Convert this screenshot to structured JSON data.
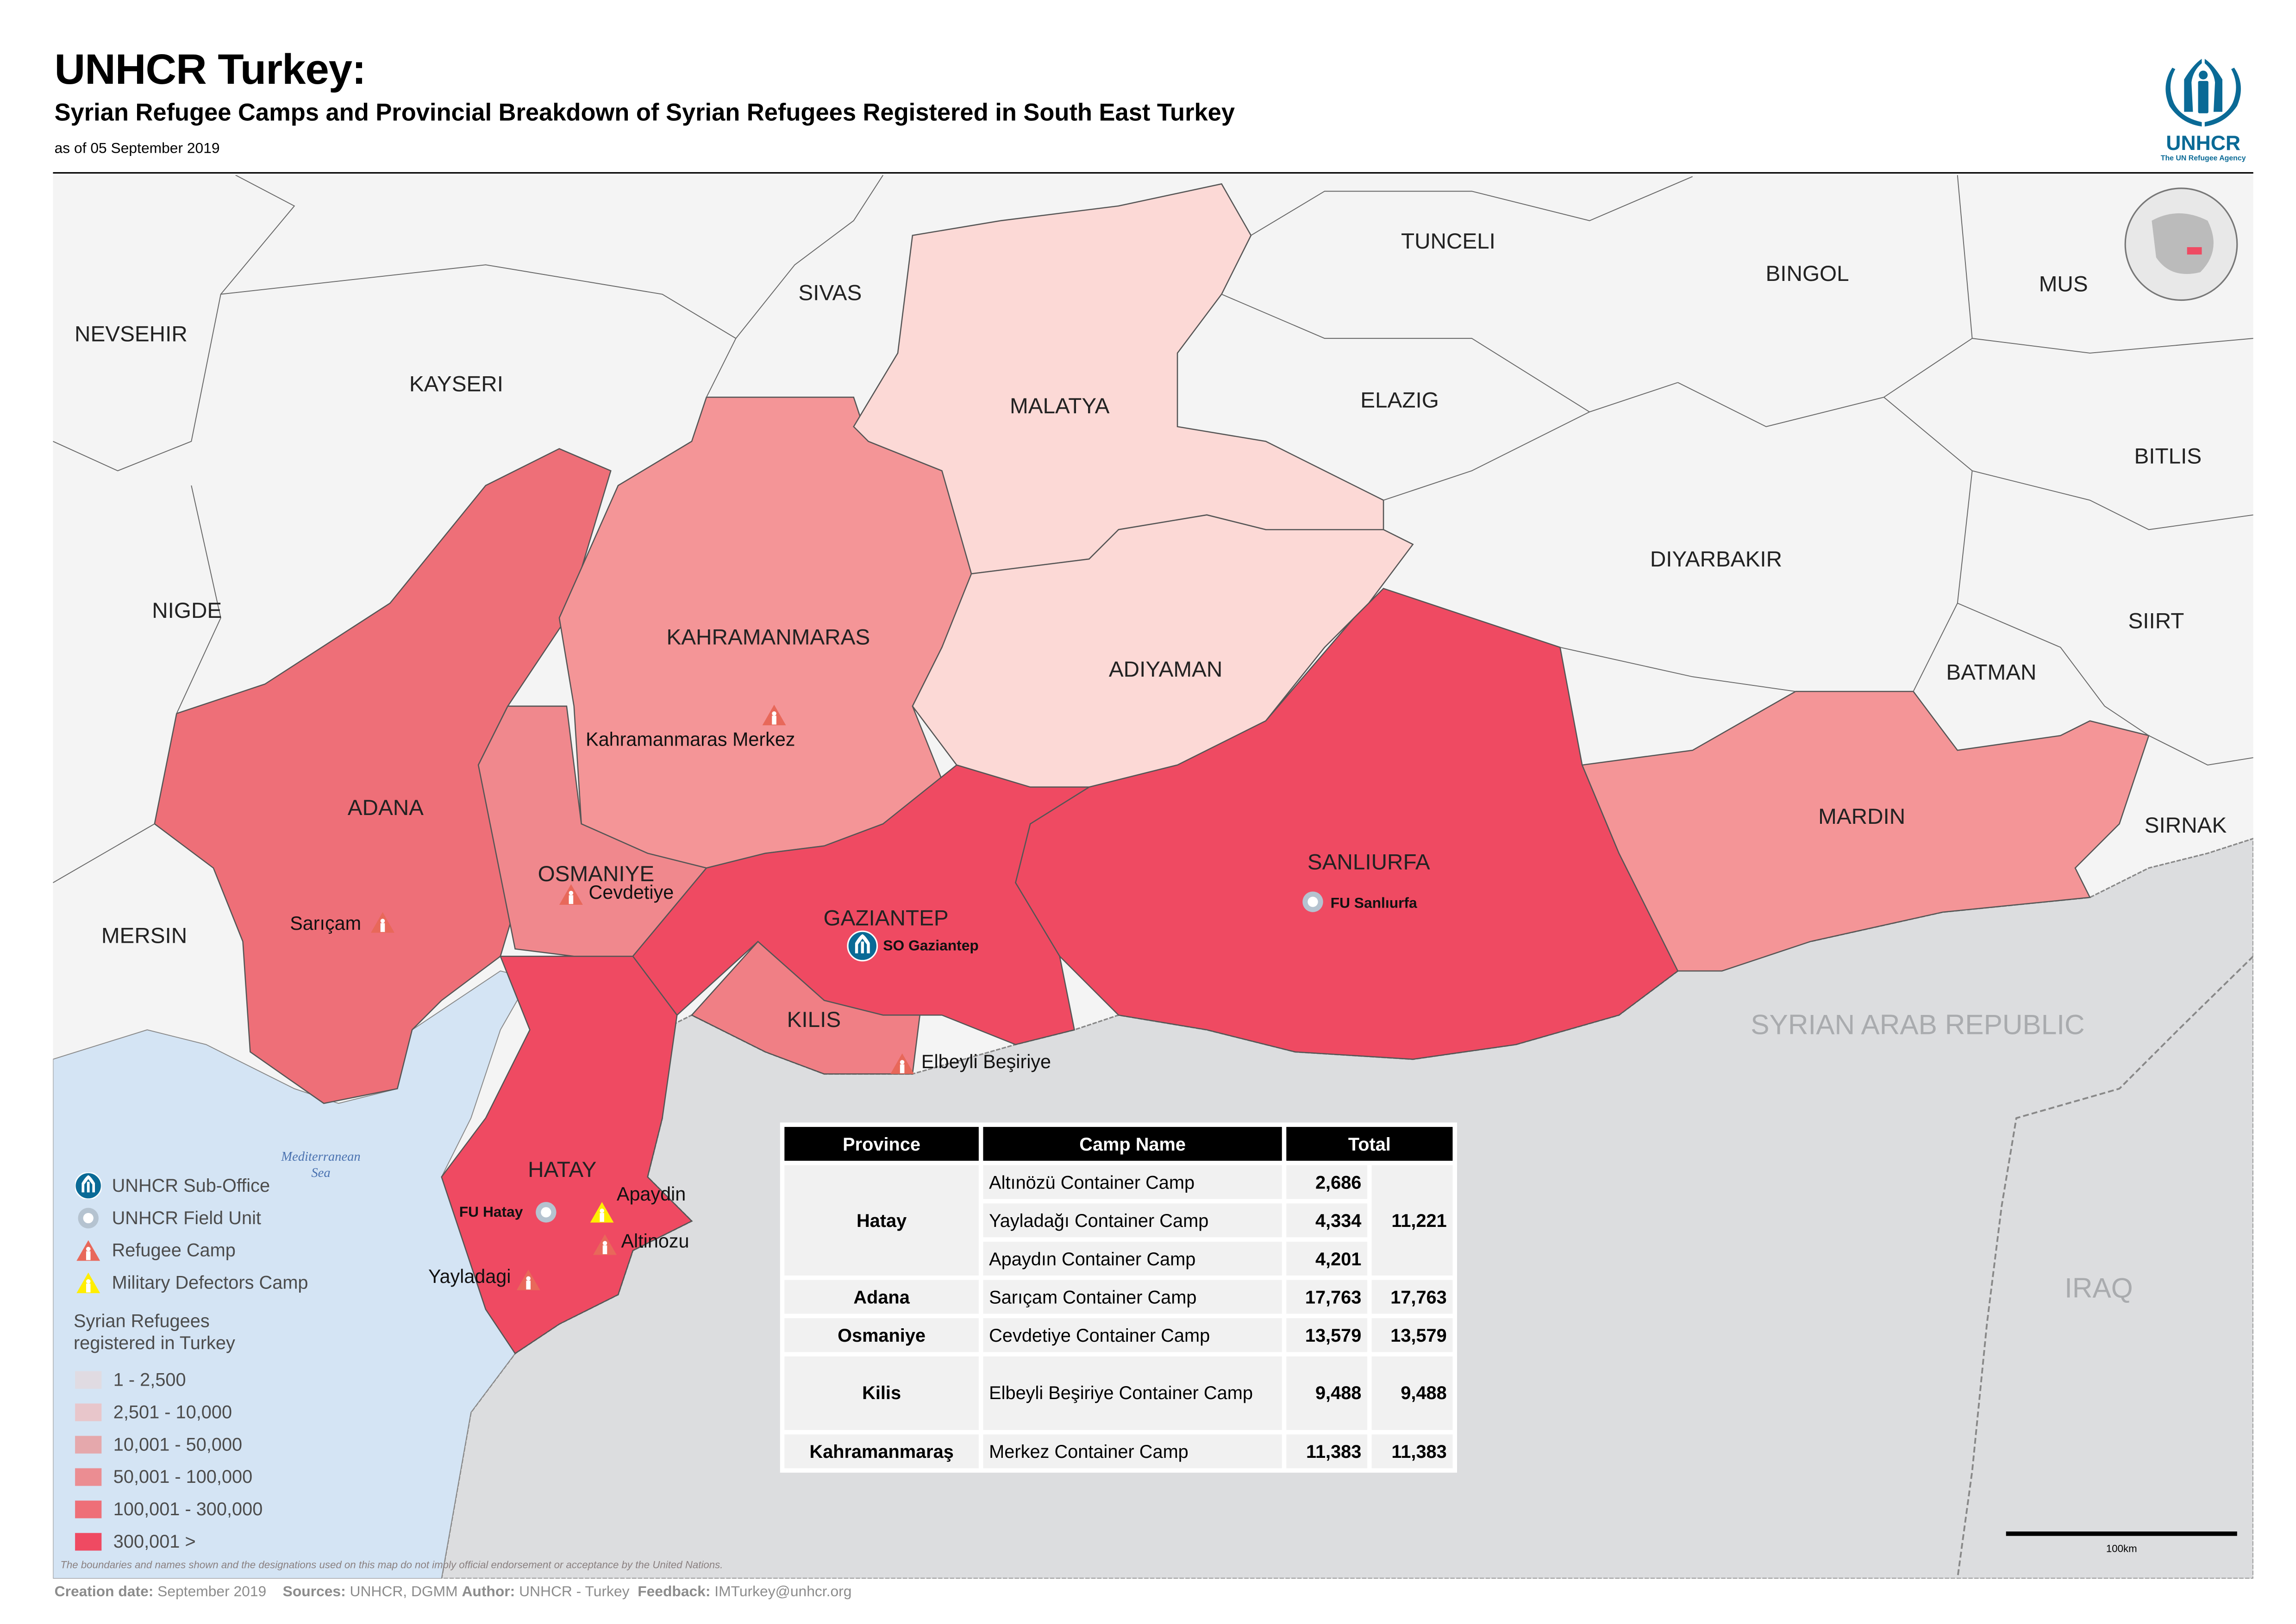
{
  "header": {
    "title": "UNHCR Turkey:",
    "subtitle": "Syrian Refugee Camps and Provincial Breakdown of Syrian Refugees Registered in South East Turkey",
    "as_of": "as of 05 September 2019"
  },
  "logo": {
    "name": "UNHCR",
    "tagline": "The UN Refugee Agency",
    "color": "#0a6a96"
  },
  "map": {
    "provinces": {
      "nevsehir": "NEVSEHIR",
      "kayseri": "KAYSERI",
      "sivas": "SIVAS",
      "tunceli": "TUNCELI",
      "bingol": "BINGOL",
      "mus": "MUS",
      "malatya": "MALATYA",
      "elazig": "ELAZIG",
      "bitlis": "BITLIS",
      "nigde": "NIGDE",
      "diyarbakir": "DIYARBAKIR",
      "siirt": "SIIRT",
      "kahramanmaras": "KAHRAMANMARAS",
      "adiyaman": "ADIYAMAN",
      "batman": "BATMAN",
      "adana": "ADANA",
      "mardin": "MARDIN",
      "sirnak": "SIRNAK",
      "sanliurfa": "SANLIURFA",
      "osmaniye": "OSMANIYE",
      "mersin": "MERSIN",
      "gaziantep": "GAZIANTEP",
      "kilis": "KILIS",
      "hatay": "HATAY"
    },
    "countries": {
      "syria": "SYRIAN ARAB REPUBLIC",
      "iraq": "IRAQ"
    },
    "sea": {
      "line1": "Mediterranean",
      "line2": "Sea"
    },
    "camps": {
      "kahramanmaras": "Kahramanmaras Merkez",
      "cevdetiye": "Cevdetiye",
      "saricam": "Sarıçam",
      "elbeyli": "Elbeyli Beşiriye",
      "apaydin": "Apaydin",
      "altinozu": "Altinozu",
      "yayladagi": "Yayladagi"
    },
    "offices": {
      "so_gaziantep": "SO Gaziantep",
      "fu_sanliurfa": "FU Sanlıurfa",
      "fu_hatay": "FU Hatay"
    },
    "colors": {
      "land": "#f4f4f4",
      "sea": "#d4e4f4",
      "neighbour": "#dcdddf",
      "camp": "#e8685a",
      "defector": "#ffee00",
      "office": "#0a6a96",
      "field_unit": "#b5c3d0"
    }
  },
  "legend": {
    "symbols": [
      {
        "icon": "unhcr-sub-office-icon",
        "label": "UNHCR Sub-Office"
      },
      {
        "icon": "field-unit-icon",
        "label": "UNHCR Field Unit"
      },
      {
        "icon": "refugee-camp-icon",
        "label": "Refugee Camp"
      },
      {
        "icon": "military-defectors-camp-icon",
        "label": "Military Defectors Camp"
      }
    ],
    "title_line1": "Syrian Refugees",
    "title_line2": "registered in Turkey",
    "classes": [
      {
        "label": "1 - 2,500",
        "color": "#e0dbe2"
      },
      {
        "label": "2,501 - 10,000",
        "color": "#e8c6cb"
      },
      {
        "label": "10,001 - 50,000",
        "color": "#e5a8ac"
      },
      {
        "label": "50,001 - 100,000",
        "color": "#eb8d92"
      },
      {
        "label": "100,001 - 300,000",
        "color": "#ee6f78"
      },
      {
        "label": "300,001 >",
        "color": "#ef4a62"
      }
    ]
  },
  "table": {
    "headers": [
      "Province",
      "Camp Name",
      "Total"
    ],
    "rows": [
      {
        "province": "Hatay",
        "total": "11,221",
        "camps": [
          {
            "name": "Altınözü Container Camp",
            "count": "2,686"
          },
          {
            "name": "Yayladağı Container Camp",
            "count": "4,334"
          },
          {
            "name": "Apaydın Container Camp",
            "count": "4,201"
          }
        ]
      },
      {
        "province": "Adana",
        "total": "17,763",
        "camps": [
          {
            "name": "Sarıçam Container Camp",
            "count": "17,763"
          }
        ]
      },
      {
        "province": "Osmaniye",
        "total": "13,579",
        "camps": [
          {
            "name": "Cevdetiye Container Camp",
            "count": "13,579"
          }
        ]
      },
      {
        "province": "Kilis",
        "total": "9,488",
        "camps": [
          {
            "name": "Elbeyli Beşiriye Container Camp",
            "count": "9,488"
          }
        ]
      },
      {
        "province": "Kahramanmaraş",
        "total": "11,383",
        "camps": [
          {
            "name": "Merkez Container Camp",
            "count": "11,383"
          }
        ]
      }
    ]
  },
  "scale_bar": "100km",
  "disclaimer": "The boundaries and names shown and the designations used on this map do not imply official endorsement or acceptance by the United Nations.",
  "footer": {
    "creation_label": "Creation date:",
    "creation_value": "September 2019",
    "sources_label": "Sources:",
    "sources_value": "UNHCR, DGMM",
    "author_label": "Author:",
    "author_value": "UNHCR - Turkey",
    "feedback_label": "Feedback:",
    "feedback_value": "IMTurkey@unhcr.org"
  }
}
